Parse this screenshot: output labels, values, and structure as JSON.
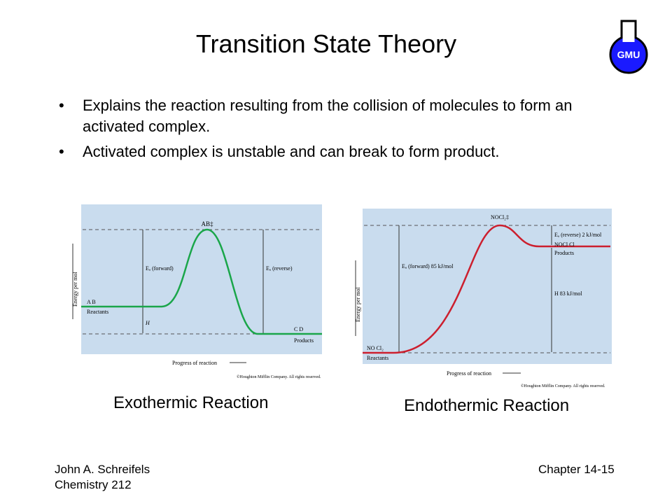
{
  "title": "Transition State Theory",
  "logo": {
    "text": "GMU",
    "icon": "flask-icon",
    "color": "#1a1aff"
  },
  "bullets": [
    "Explains the reaction resulting from the collision of molecules to form an activated complex.",
    "Activated complex is unstable and can break to form product."
  ],
  "bullet_symbol": "•",
  "diagram1": {
    "peak_label": "AB‡",
    "ylabel": "Energy per mol",
    "xlabel": "Progress of reaction",
    "reactants_species": "A    B",
    "reactants_label": "Reactants",
    "products_species": "C    D",
    "products_label": "Products",
    "ea_forward": "Eₐ (forward)",
    "ea_reverse": "Eₐ (reverse)",
    "dh": "H",
    "copyright": "©Houghton Mifflin Company. All rights reserved.",
    "curve_color": "#1aa64a"
  },
  "diagram2": {
    "peak_label": "NOCl₂‡",
    "ylabel": "Energy per mol",
    "xlabel": "Progress of reaction",
    "reactants_species": "NO    Cl₂",
    "reactants_label": "Reactants",
    "products_species": "NOCl    Cl",
    "products_label": "Products",
    "ea_forward": "Eₐ (forward)    85 kJ/mol",
    "ea_reverse": "Eₐ (reverse)    2 kJ/mol",
    "dh": "H      83 kJ/mol",
    "copyright": "©Houghton Mifflin Company. All rights reserved.",
    "curve_color": "#cc1f2e"
  },
  "captions": [
    "Exothermic Reaction",
    "Endothermic Reaction"
  ],
  "footer": {
    "author": "John A. Schreifels",
    "course": "Chemistry 212",
    "chapter": "Chapter 14-15"
  },
  "colors": {
    "panel": "#c9dcee"
  }
}
